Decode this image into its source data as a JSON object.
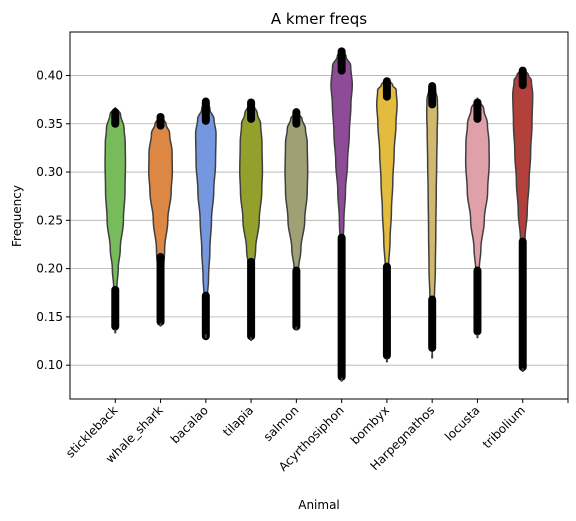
{
  "chart_data": {
    "type": "violin",
    "title": "A kmer freqs",
    "xlabel": "Animal",
    "ylabel": "Frequency",
    "ylim": [
      0.065,
      0.445
    ],
    "yticks": [
      0.1,
      0.15,
      0.2,
      0.25,
      0.3,
      0.35,
      0.4
    ],
    "ytick_labels": [
      "0.10",
      "0.15",
      "0.20",
      "0.25",
      "0.30",
      "0.35",
      "0.40"
    ],
    "grid": "y",
    "categories": [
      "stickleback",
      "whale_shark",
      "bacalao",
      "tilapia",
      "salmon",
      "Acyrthosiphon",
      "bombyx",
      "Harpegnathos",
      "locusta",
      "tribolium"
    ],
    "series": [
      {
        "category": "stickleback",
        "color": "#77bb5a",
        "min": 0.133,
        "max": 0.367,
        "profile": [
          [
            0.133,
            0.0
          ],
          [
            0.15,
            0.03
          ],
          [
            0.18,
            0.07
          ],
          [
            0.2,
            0.13
          ],
          [
            0.22,
            0.22
          ],
          [
            0.25,
            0.36
          ],
          [
            0.28,
            0.43
          ],
          [
            0.31,
            0.45
          ],
          [
            0.33,
            0.44
          ],
          [
            0.345,
            0.39
          ],
          [
            0.36,
            0.23
          ],
          [
            0.367,
            0.0
          ]
        ],
        "outliers": [
          [
            0.14,
            0.178
          ],
          [
            0.35,
            0.362
          ]
        ]
      },
      {
        "category": "whale_shark",
        "color": "#dc8743",
        "min": 0.14,
        "max": 0.358,
        "profile": [
          [
            0.14,
            0.0
          ],
          [
            0.16,
            0.05
          ],
          [
            0.19,
            0.1
          ],
          [
            0.22,
            0.18
          ],
          [
            0.25,
            0.32
          ],
          [
            0.28,
            0.47
          ],
          [
            0.3,
            0.52
          ],
          [
            0.32,
            0.51
          ],
          [
            0.34,
            0.4
          ],
          [
            0.35,
            0.24
          ],
          [
            0.358,
            0.0
          ]
        ],
        "outliers": [
          [
            0.145,
            0.212
          ],
          [
            0.348,
            0.357
          ]
        ]
      },
      {
        "category": "bacalao",
        "color": "#7497e0",
        "min": 0.128,
        "max": 0.377,
        "profile": [
          [
            0.128,
            0.0
          ],
          [
            0.15,
            0.03
          ],
          [
            0.17,
            0.07
          ],
          [
            0.19,
            0.12
          ],
          [
            0.22,
            0.18
          ],
          [
            0.25,
            0.25
          ],
          [
            0.28,
            0.35
          ],
          [
            0.31,
            0.43
          ],
          [
            0.34,
            0.45
          ],
          [
            0.355,
            0.36
          ],
          [
            0.365,
            0.18
          ],
          [
            0.377,
            0.0
          ]
        ],
        "outliers": [
          [
            0.13,
            0.172
          ],
          [
            0.353,
            0.373
          ]
        ]
      },
      {
        "category": "tilapia",
        "color": "#93a02b",
        "min": 0.125,
        "max": 0.374,
        "profile": [
          [
            0.125,
            0.0
          ],
          [
            0.15,
            0.02
          ],
          [
            0.18,
            0.05
          ],
          [
            0.2,
            0.11
          ],
          [
            0.22,
            0.2
          ],
          [
            0.25,
            0.36
          ],
          [
            0.28,
            0.47
          ],
          [
            0.3,
            0.5
          ],
          [
            0.33,
            0.48
          ],
          [
            0.35,
            0.42
          ],
          [
            0.36,
            0.28
          ],
          [
            0.374,
            0.0
          ]
        ],
        "outliers": [
          [
            0.13,
            0.207
          ],
          [
            0.355,
            0.372
          ]
        ]
      },
      {
        "category": "salmon",
        "color": "#a0a075",
        "min": 0.136,
        "max": 0.363,
        "profile": [
          [
            0.136,
            0.0
          ],
          [
            0.15,
            0.02
          ],
          [
            0.18,
            0.04
          ],
          [
            0.2,
            0.1
          ],
          [
            0.22,
            0.2
          ],
          [
            0.25,
            0.37
          ],
          [
            0.28,
            0.48
          ],
          [
            0.3,
            0.5
          ],
          [
            0.33,
            0.48
          ],
          [
            0.345,
            0.4
          ],
          [
            0.355,
            0.25
          ],
          [
            0.363,
            0.0
          ]
        ],
        "outliers": [
          [
            0.14,
            0.198
          ],
          [
            0.35,
            0.362
          ]
        ]
      },
      {
        "category": "Acyrthosiphon",
        "color": "#8e4b98",
        "min": 0.083,
        "max": 0.427,
        "profile": [
          [
            0.083,
            0.0
          ],
          [
            0.12,
            0.01
          ],
          [
            0.18,
            0.02
          ],
          [
            0.22,
            0.05
          ],
          [
            0.25,
            0.1
          ],
          [
            0.28,
            0.17
          ],
          [
            0.31,
            0.26
          ],
          [
            0.34,
            0.34
          ],
          [
            0.37,
            0.41
          ],
          [
            0.39,
            0.47
          ],
          [
            0.41,
            0.4
          ],
          [
            0.42,
            0.19
          ],
          [
            0.427,
            0.0
          ]
        ],
        "outliers": [
          [
            0.088,
            0.232
          ],
          [
            0.405,
            0.425
          ]
        ]
      },
      {
        "category": "bombyx",
        "color": "#e4bc3d",
        "min": 0.103,
        "max": 0.397,
        "profile": [
          [
            0.103,
            0.0
          ],
          [
            0.13,
            0.01
          ],
          [
            0.17,
            0.03
          ],
          [
            0.2,
            0.07
          ],
          [
            0.23,
            0.14
          ],
          [
            0.26,
            0.2
          ],
          [
            0.29,
            0.26
          ],
          [
            0.32,
            0.32
          ],
          [
            0.35,
            0.4
          ],
          [
            0.37,
            0.45
          ],
          [
            0.385,
            0.41
          ],
          [
            0.39,
            0.25
          ],
          [
            0.397,
            0.0
          ]
        ],
        "outliers": [
          [
            0.11,
            0.202
          ],
          [
            0.378,
            0.394
          ]
        ]
      },
      {
        "category": "Harpegnathos",
        "color": "#d0b86d",
        "min": 0.107,
        "max": 0.393,
        "profile": [
          [
            0.107,
            0.0
          ],
          [
            0.14,
            0.04
          ],
          [
            0.17,
            0.1
          ],
          [
            0.2,
            0.14
          ],
          [
            0.24,
            0.16
          ],
          [
            0.28,
            0.18
          ],
          [
            0.31,
            0.2
          ],
          [
            0.34,
            0.22
          ],
          [
            0.36,
            0.24
          ],
          [
            0.375,
            0.23
          ],
          [
            0.385,
            0.15
          ],
          [
            0.393,
            0.0
          ]
        ],
        "outliers": [
          [
            0.118,
            0.168
          ],
          [
            0.37,
            0.389
          ]
        ]
      },
      {
        "category": "locusta",
        "color": "#e0a0a9",
        "min": 0.128,
        "max": 0.377,
        "profile": [
          [
            0.128,
            0.0
          ],
          [
            0.15,
            0.02
          ],
          [
            0.18,
            0.05
          ],
          [
            0.2,
            0.08
          ],
          [
            0.22,
            0.15
          ],
          [
            0.25,
            0.3
          ],
          [
            0.28,
            0.45
          ],
          [
            0.31,
            0.52
          ],
          [
            0.33,
            0.51
          ],
          [
            0.35,
            0.44
          ],
          [
            0.365,
            0.28
          ],
          [
            0.377,
            0.0
          ]
        ],
        "outliers": [
          [
            0.135,
            0.198
          ],
          [
            0.355,
            0.372
          ]
        ]
      },
      {
        "category": "tribolium",
        "color": "#b2413c",
        "min": 0.093,
        "max": 0.408,
        "profile": [
          [
            0.093,
            0.0
          ],
          [
            0.13,
            0.01
          ],
          [
            0.17,
            0.02
          ],
          [
            0.2,
            0.04
          ],
          [
            0.23,
            0.1
          ],
          [
            0.26,
            0.2
          ],
          [
            0.29,
            0.28
          ],
          [
            0.32,
            0.35
          ],
          [
            0.35,
            0.41
          ],
          [
            0.38,
            0.44
          ],
          [
            0.395,
            0.38
          ],
          [
            0.4,
            0.26
          ],
          [
            0.408,
            0.0
          ]
        ],
        "outliers": [
          [
            0.098,
            0.228
          ],
          [
            0.39,
            0.405
          ]
        ]
      }
    ]
  }
}
